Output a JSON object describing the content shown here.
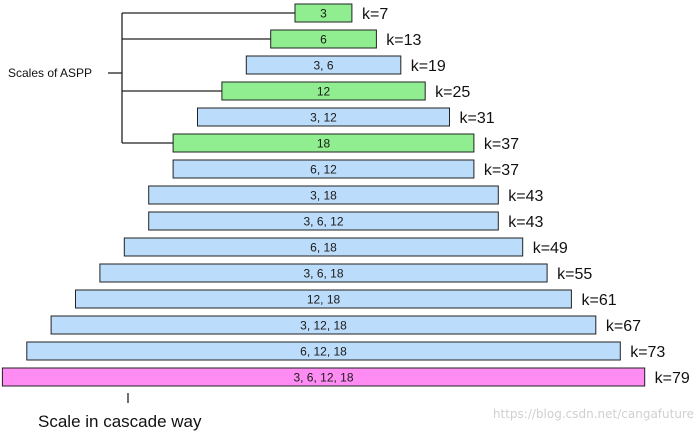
{
  "labels": {
    "aspp_label": "Scales of ASPP",
    "cascade_label": "Scale in cascade way",
    "watermark": "https://blog.csdn.net/cangafuture"
  },
  "colors": {
    "aspp": "#90ee90",
    "cascade": "#bcdcfb",
    "full": "#ff8cf2",
    "stroke": "#222222"
  },
  "bars": [
    {
      "label": "3",
      "k": "k=7",
      "kind": "aspp"
    },
    {
      "label": "6",
      "k": "k=13",
      "kind": "aspp"
    },
    {
      "label": "3, 6",
      "k": "k=19",
      "kind": "cascade"
    },
    {
      "label": "12",
      "k": "k=25",
      "kind": "aspp"
    },
    {
      "label": "3, 12",
      "k": "k=31",
      "kind": "cascade"
    },
    {
      "label": "18",
      "k": "k=37",
      "kind": "aspp"
    },
    {
      "label": "6, 12",
      "k": "k=37",
      "kind": "cascade"
    },
    {
      "label": "3, 18",
      "k": "k=43",
      "kind": "cascade"
    },
    {
      "label": "3, 6, 12",
      "k": "k=43",
      "kind": "cascade"
    },
    {
      "label": "6, 18",
      "k": "k=49",
      "kind": "cascade"
    },
    {
      "label": "3, 6, 18",
      "k": "k=55",
      "kind": "cascade"
    },
    {
      "label": "12, 18",
      "k": "k=61",
      "kind": "cascade"
    },
    {
      "label": "3, 12, 18",
      "k": "k=67",
      "kind": "cascade"
    },
    {
      "label": "6, 12, 18",
      "k": "k=73",
      "kind": "cascade"
    },
    {
      "label": "3, 6, 12, 18",
      "k": "k=79",
      "kind": "full"
    }
  ]
}
